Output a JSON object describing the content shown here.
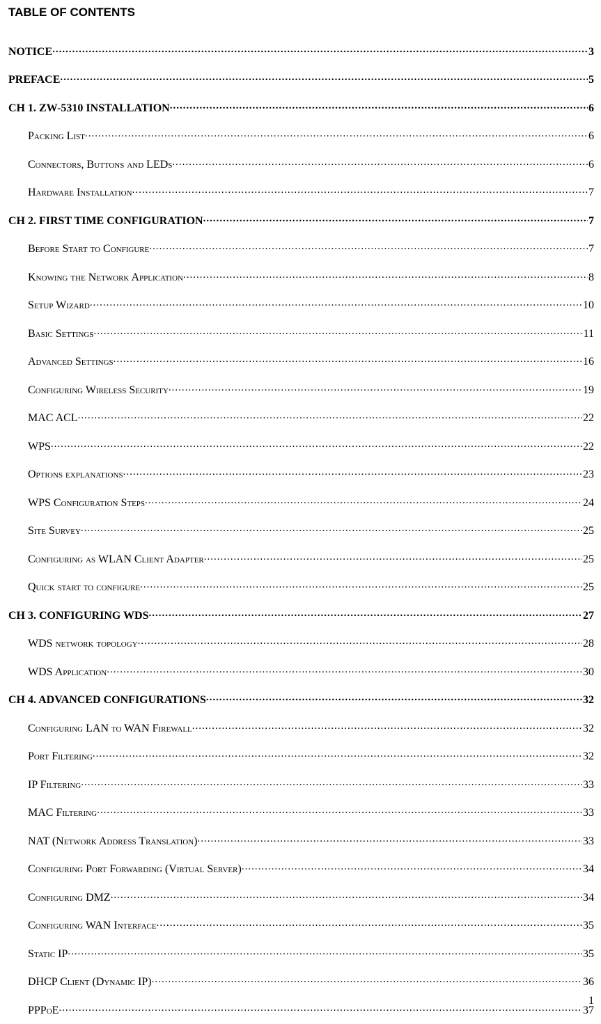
{
  "title": "TABLE OF CONTENTS",
  "pageNumber": "1",
  "entries": [
    {
      "level": 1,
      "label": "NOTICE",
      "page": "3",
      "smallcaps": false
    },
    {
      "level": 1,
      "label": "PREFACE",
      "page": "5",
      "smallcaps": false
    },
    {
      "level": 1,
      "label": "CH 1. ZW-5310 INSTALLATION",
      "page": "6",
      "smallcaps": false
    },
    {
      "level": 2,
      "label": "Packing List",
      "page": "6",
      "smallcaps": true
    },
    {
      "level": 2,
      "label": "Connectors, Buttons and LEDs",
      "page": "6",
      "smallcaps": true
    },
    {
      "level": 2,
      "label": "Hardware Installation",
      "page": "7",
      "smallcaps": true
    },
    {
      "level": 1,
      "label": "CH 2. FIRST TIME CONFIGURATION",
      "page": "7",
      "smallcaps": false
    },
    {
      "level": 2,
      "label": "Before Start to Configure",
      "page": "7",
      "smallcaps": true
    },
    {
      "level": 2,
      "label": "Knowing the Network Application",
      "page": "8",
      "smallcaps": true
    },
    {
      "level": 2,
      "label": "Setup Wizard",
      "page": "10",
      "smallcaps": true
    },
    {
      "level": 2,
      "label": "Basic Settings",
      "page": "11",
      "smallcaps": true
    },
    {
      "level": 2,
      "label": "Advanced Settings",
      "page": "16",
      "smallcaps": true
    },
    {
      "level": 2,
      "label": "Configuring Wireless Security",
      "page": "19",
      "smallcaps": true
    },
    {
      "level": 2,
      "label": "MAC ACL",
      "page": "22",
      "smallcaps": false
    },
    {
      "level": 2,
      "label": "WPS",
      "page": "22",
      "smallcaps": false
    },
    {
      "level": 2,
      "label": "Options explanations",
      "page": "23",
      "smallcaps": true
    },
    {
      "level": 2,
      "label": "WPS Configuration Steps",
      "page": "24",
      "smallcaps": true
    },
    {
      "level": 2,
      "label": "Site Survey",
      "page": "25",
      "smallcaps": true
    },
    {
      "level": 2,
      "label": "Configuring as WLAN Client Adapter",
      "page": "25",
      "smallcaps": true
    },
    {
      "level": 2,
      "label": "Quick start to configure",
      "page": "25",
      "smallcaps": true
    },
    {
      "level": 1,
      "label": "CH 3. CONFIGURING WDS",
      "page": "27",
      "smallcaps": false
    },
    {
      "level": 2,
      "label": "WDS network topology",
      "page": "28",
      "smallcaps": true
    },
    {
      "level": 2,
      "label": "WDS Application",
      "page": "30",
      "smallcaps": true
    },
    {
      "level": 1,
      "label": "CH 4. ADVANCED CONFIGURATIONS",
      "page": "32",
      "smallcaps": false
    },
    {
      "level": 2,
      "label": "Configuring LAN to WAN Firewall",
      "page": "32",
      "smallcaps": true
    },
    {
      "level": 2,
      "label": "Port Filtering",
      "page": "32",
      "smallcaps": true
    },
    {
      "level": 2,
      "label": "IP Filtering",
      "page": "33",
      "smallcaps": true
    },
    {
      "level": 2,
      "label": "MAC Filtering",
      "page": "33",
      "smallcaps": true
    },
    {
      "level": 2,
      "label": "NAT (Network Address Translation)",
      "page": "33",
      "smallcaps": true
    },
    {
      "level": 2,
      "label": "Configuring Port Forwarding (Virtual Server)",
      "page": "34",
      "smallcaps": true
    },
    {
      "level": 2,
      "label": "Configuring DMZ",
      "page": "34",
      "smallcaps": true
    },
    {
      "level": 2,
      "label": "Configuring WAN Interface",
      "page": "35",
      "smallcaps": true
    },
    {
      "level": 2,
      "label": "Static IP",
      "page": "35",
      "smallcaps": true
    },
    {
      "level": 2,
      "label": "DHCP Client (Dynamic IP)",
      "page": "36",
      "smallcaps": true
    },
    {
      "level": 2,
      "label": "PPPoE",
      "page": "37",
      "smallcaps": true
    }
  ]
}
